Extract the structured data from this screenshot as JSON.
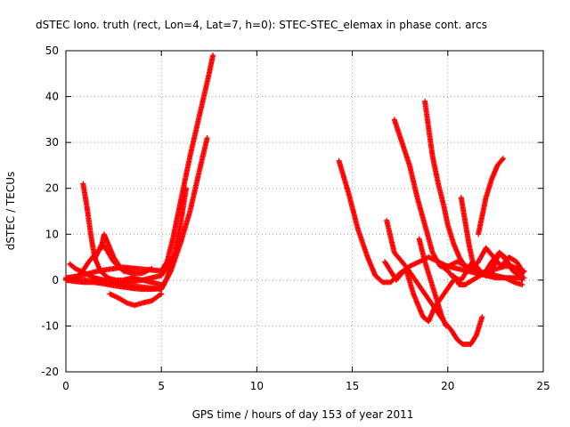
{
  "chart_data": {
    "type": "scatter",
    "title": "dSTEC Iono. truth (rect, Lon=4, Lat=7, h=0): STEC-STEC_elemax in phase cont. arcs",
    "xlabel": "GPS time / hours of day 153 of year 2011",
    "ylabel": "dSTEC  / TECUs",
    "xlim": [
      0,
      25
    ],
    "ylim": [
      -20,
      50
    ],
    "xticks": [
      0,
      5,
      10,
      15,
      20,
      25
    ],
    "yticks": [
      -20,
      -10,
      0,
      10,
      20,
      30,
      40,
      50
    ],
    "grid": true,
    "marker": "+",
    "color": "#ff0000",
    "series": [
      {
        "x": [
          0.0,
          0.5,
          1.0,
          1.5,
          2.0,
          2.5,
          3.0,
          3.5,
          4.0,
          4.5,
          5.0,
          5.3,
          5.6,
          6.0,
          6.5,
          7.0,
          7.5,
          7.7
        ],
        "y": [
          0.5,
          0.8,
          1.2,
          1.8,
          2.2,
          2.5,
          2.8,
          2.6,
          2.4,
          2.2,
          2.0,
          4.0,
          9.0,
          17.0,
          27.0,
          36.0,
          45.0,
          49.0
        ]
      },
      {
        "x": [
          0.0,
          1.0,
          2.0,
          3.0,
          4.0,
          5.0,
          5.5,
          6.0,
          6.5,
          7.0,
          7.4
        ],
        "y": [
          0.2,
          0.0,
          -0.5,
          -1.0,
          -1.5,
          -2.0,
          2.0,
          8.0,
          15.0,
          24.0,
          31.0
        ]
      },
      {
        "x": [
          0.0,
          0.5,
          1.0,
          1.5,
          2.0,
          2.5,
          3.0,
          3.5,
          4.0,
          4.5,
          5.0,
          5.3,
          5.7,
          6.0,
          6.3
        ],
        "y": [
          0.0,
          -0.3,
          -0.5,
          -0.5,
          -0.8,
          -1.2,
          -1.5,
          -1.8,
          -2.0,
          -2.0,
          -1.8,
          0.5,
          6.0,
          12.0,
          20.0
        ]
      },
      {
        "x": [
          0.2,
          0.5,
          1.0,
          1.5,
          2.0,
          2.5,
          3.0,
          3.5,
          4.0,
          4.5,
          5.0,
          5.3,
          5.6
        ],
        "y": [
          3.5,
          2.5,
          1.5,
          0.5,
          0.0,
          -0.5,
          -0.5,
          -0.3,
          0.0,
          0.5,
          1.0,
          3.0,
          5.0
        ]
      },
      {
        "x": [
          0.9,
          1.1,
          1.3,
          1.5,
          1.8,
          2.2,
          2.6,
          3.0,
          3.5,
          4.0,
          4.5,
          5.0
        ],
        "y": [
          21.0,
          16.0,
          10.0,
          5.0,
          2.0,
          0.5,
          0.0,
          0.0,
          0.5,
          0.0,
          -0.5,
          -1.0
        ]
      },
      {
        "x": [
          0.3,
          0.8,
          1.2,
          1.6,
          2.0,
          2.5,
          3.0,
          3.5,
          4.0,
          4.5
        ],
        "y": [
          0.0,
          1.5,
          4.0,
          6.0,
          7.5,
          4.0,
          2.0,
          1.5,
          1.5,
          2.5
        ]
      },
      {
        "x": [
          1.5,
          1.9,
          2.0,
          2.2,
          2.5,
          2.8,
          3.2,
          3.5
        ],
        "y": [
          4.5,
          8.0,
          10.0,
          8.0,
          5.0,
          3.0,
          2.0,
          1.5
        ]
      },
      {
        "x": [
          2.3,
          2.8,
          3.2,
          3.6,
          4.0,
          4.5,
          5.0
        ],
        "y": [
          -3.0,
          -4.0,
          -5.0,
          -5.5,
          -5.0,
          -4.5,
          -3.0
        ]
      },
      {
        "x": [
          14.3,
          14.8,
          15.3,
          15.8,
          16.2,
          16.6,
          17.0,
          17.5,
          18.0,
          18.5,
          19.0,
          19.5,
          20.0,
          20.5,
          21.0,
          21.5,
          22.0,
          22.5,
          23.0,
          23.5,
          24.0
        ],
        "y": [
          26.0,
          19.0,
          11.0,
          5.0,
          1.0,
          -0.5,
          -0.5,
          1.5,
          3.0,
          4.0,
          5.0,
          4.0,
          3.0,
          2.5,
          2.0,
          1.5,
          1.0,
          0.5,
          0.5,
          0.5,
          0.5
        ]
      },
      {
        "x": [
          16.8,
          17.2,
          17.8,
          18.3,
          18.8,
          19.3,
          19.8,
          20.2,
          20.5,
          20.8,
          21.2,
          21.5,
          21.8
        ],
        "y": [
          13.0,
          6.0,
          3.0,
          0.0,
          -3.0,
          -6.0,
          -9.0,
          -11.0,
          -13.0,
          -14.0,
          -14.0,
          -12.0,
          -8.0
        ]
      },
      {
        "x": [
          16.7,
          17.3,
          17.8,
          18.2,
          18.7,
          19.0,
          19.3,
          19.8,
          20.3
        ],
        "y": [
          4.0,
          0.0,
          2.5,
          -3.0,
          -8.0,
          -9.0,
          -6.0,
          -3.0,
          0.0
        ]
      },
      {
        "x": [
          17.2,
          17.6,
          18.0,
          18.4,
          18.8,
          19.2,
          19.6,
          20.0,
          20.5,
          21.0,
          21.5
        ],
        "y": [
          35.0,
          30.0,
          25.0,
          18.0,
          12.0,
          6.0,
          3.0,
          3.0,
          4.0,
          3.0,
          2.0
        ]
      },
      {
        "x": [
          18.8,
          19.0,
          19.2,
          19.5,
          19.8,
          20.0,
          20.3,
          20.6,
          20.9,
          21.2,
          21.5,
          21.8,
          22.2,
          22.6,
          23.0,
          23.4,
          23.8
        ],
        "y": [
          39.0,
          33.0,
          27.0,
          21.0,
          16.0,
          12.0,
          8.0,
          5.0,
          3.0,
          2.0,
          1.5,
          1.5,
          2.0,
          2.5,
          3.0,
          3.0,
          2.0
        ]
      },
      {
        "x": [
          18.5,
          18.8,
          19.1,
          19.4,
          19.7,
          19.9
        ],
        "y": [
          9.0,
          4.0,
          0.0,
          -4.0,
          -8.0,
          -10.0
        ]
      },
      {
        "x": [
          19.7,
          20.0,
          20.3,
          20.7,
          21.0,
          21.3,
          21.7,
          22.0,
          22.3,
          22.7,
          23.0,
          23.4,
          23.8,
          24.0
        ],
        "y": [
          3.0,
          2.0,
          0.5,
          0.0,
          2.0,
          4.0,
          2.0,
          1.0,
          2.0,
          6.0,
          5.0,
          2.0,
          1.0,
          2.0
        ]
      },
      {
        "x": [
          20.7,
          20.9,
          21.1,
          21.3,
          21.6,
          22.0,
          22.3,
          22.7,
          23.1,
          23.5,
          23.9
        ],
        "y": [
          18.0,
          13.0,
          8.0,
          4.0,
          1.0,
          2.0,
          4.0,
          6.0,
          4.0,
          2.0,
          0.0
        ]
      },
      {
        "x": [
          20.3,
          20.6,
          20.9,
          21.3,
          21.7,
          22.1,
          22.5,
          23.0,
          23.5,
          23.9
        ],
        "y": [
          1.0,
          -1.0,
          -1.0,
          0.0,
          1.0,
          2.0,
          1.0,
          0.5,
          -0.5,
          -1.0
        ]
      },
      {
        "x": [
          21.6,
          21.8,
          22.0,
          22.3,
          22.6,
          22.9
        ],
        "y": [
          10.0,
          14.0,
          18.0,
          22.0,
          25.0,
          26.5
        ]
      },
      {
        "x": [
          21.2,
          21.6,
          22.0,
          22.4,
          22.8,
          23.2,
          23.6,
          23.9
        ],
        "y": [
          2.0,
          4.0,
          7.0,
          5.0,
          3.0,
          5.0,
          4.0,
          2.0
        ]
      }
    ]
  }
}
